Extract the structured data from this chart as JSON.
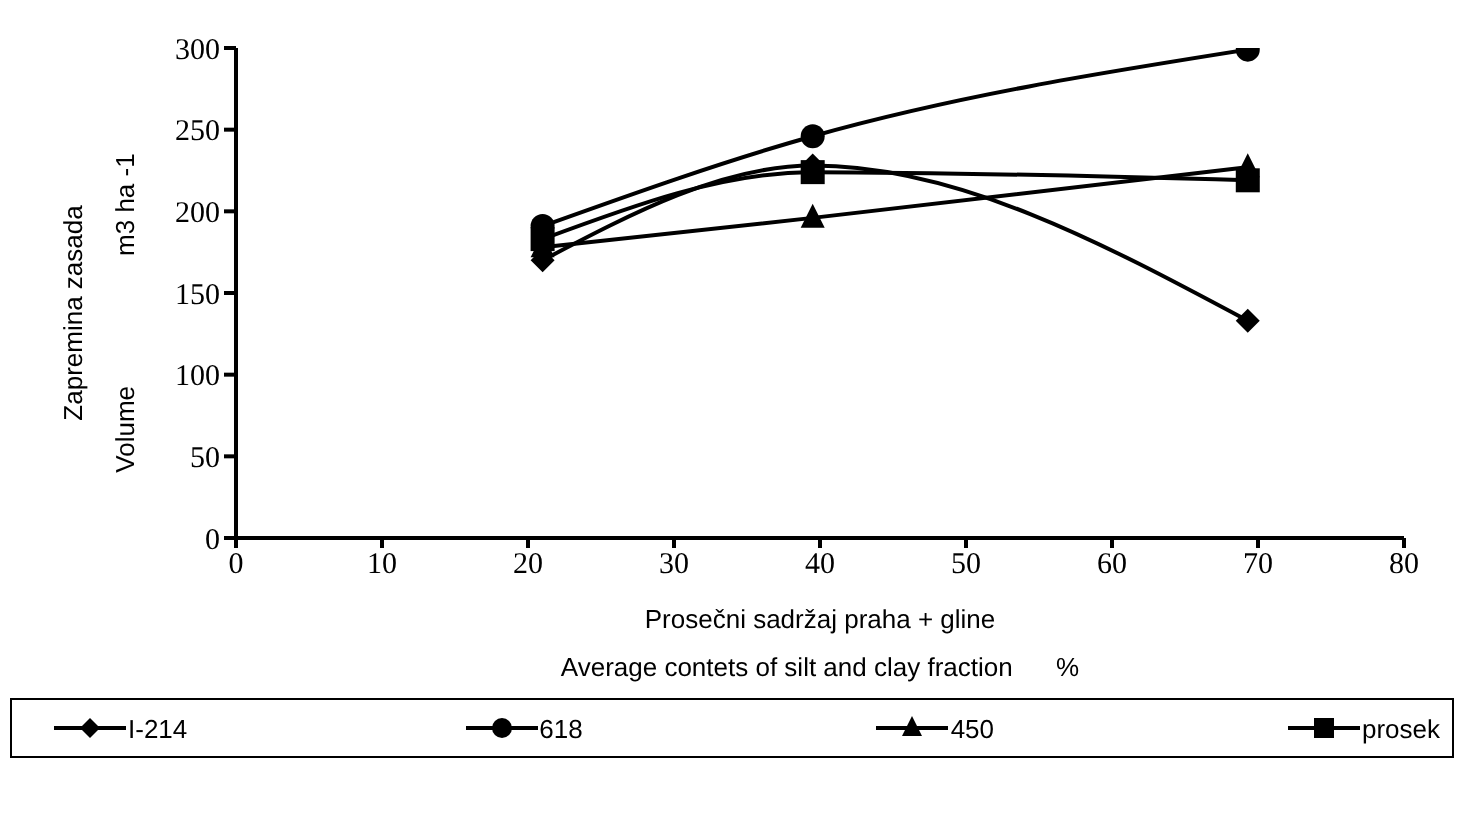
{
  "chart_data": {
    "type": "line",
    "xlabel": "Prosečni sadržaj praha + gline\nAverage contets of silt and clay fraction      %",
    "ylabel": "Zapremina zasada\nVolume                  m3 ha -1",
    "x": [
      21,
      39.5,
      69.3
    ],
    "series": [
      {
        "name": "I-214",
        "color": "#000000",
        "marker": "diamond",
        "values": [
          170,
          228,
          133
        ]
      },
      {
        "name": "618",
        "color": "#000000",
        "marker": "circle",
        "values": [
          191,
          246,
          299
        ]
      },
      {
        "name": "450",
        "color": "#000000",
        "marker": "triangle",
        "values": [
          178,
          196,
          227
        ]
      },
      {
        "name": "prosek",
        "color": "#000000",
        "marker": "square",
        "values": [
          183,
          224,
          219
        ]
      }
    ],
    "xlim": [
      0,
      80
    ],
    "xticks": [
      0,
      10,
      20,
      30,
      40,
      50,
      60,
      70,
      80
    ],
    "ylim": [
      0,
      300
    ],
    "yticks": [
      0,
      50,
      100,
      150,
      200,
      250,
      300
    ],
    "grid": false,
    "legend": "bottom",
    "line_style": "solid"
  }
}
